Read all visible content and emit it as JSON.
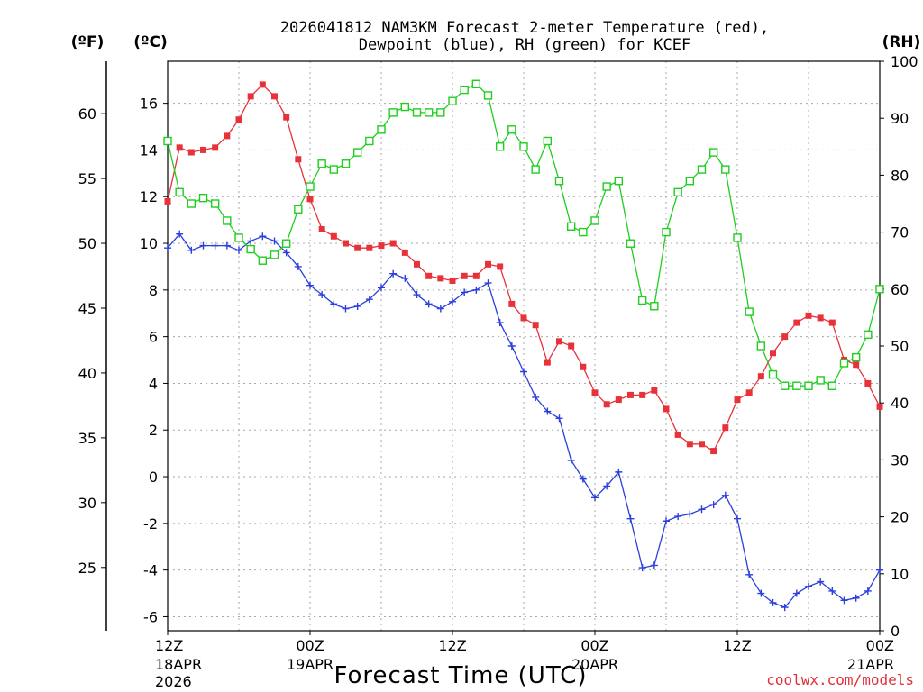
{
  "chart_data": {
    "type": "line",
    "title_line1": "2026041812 NAM3KM Forecast 2-meter Temperature (red),",
    "title_line2": "Dewpoint (blue), RH (green) for KCEF",
    "unit_left_f": "(ºF)",
    "unit_left_c": "(ºC)",
    "unit_right": "(RH)",
    "xlabel": "Forecast Time (UTC)",
    "credit": "coolwx.com/models",
    "x_range_hours": [
      0,
      60
    ],
    "celsius_range": [
      -6.6,
      17.8
    ],
    "rh_range": [
      0,
      100
    ],
    "fahrenheit_ticks": [
      "25",
      "30",
      "35",
      "40",
      "45",
      "50",
      "55",
      "60"
    ],
    "celsius_ticks": [
      "-6",
      "-4",
      "-2",
      "0",
      "2",
      "4",
      "6",
      "8",
      "10",
      "12",
      "14",
      "16"
    ],
    "rh_ticks": [
      "0",
      "10",
      "20",
      "30",
      "40",
      "50",
      "60",
      "70",
      "80",
      "90",
      "100"
    ],
    "x_ticks": [
      {
        "hour": 0,
        "line1": "12Z",
        "line2": "18APR",
        "line3": "2026"
      },
      {
        "hour": 12,
        "line1": "00Z",
        "line2": "19APR",
        "line3": ""
      },
      {
        "hour": 24,
        "line1": "12Z",
        "line2": "",
        "line3": ""
      },
      {
        "hour": 36,
        "line1": "00Z",
        "line2": "20APR",
        "line3": ""
      },
      {
        "hour": 48,
        "line1": "12Z",
        "line2": "",
        "line3": ""
      },
      {
        "hour": 60,
        "line1": "00Z",
        "line2": "21APR",
        "line3": ""
      }
    ],
    "series": [
      {
        "name": "Temperature",
        "unit": "C",
        "color": "#e8323a",
        "marker": "filled-square",
        "values": [
          11.8,
          14.1,
          13.9,
          14.0,
          14.1,
          14.6,
          15.3,
          16.3,
          16.8,
          16.3,
          15.4,
          13.6,
          11.9,
          10.6,
          10.3,
          10.0,
          9.8,
          9.8,
          9.9,
          10.0,
          9.6,
          9.1,
          8.6,
          8.5,
          8.4,
          8.6,
          8.6,
          9.1,
          9.0,
          7.4,
          6.8,
          6.5,
          4.9,
          5.8,
          5.6,
          4.7,
          3.6,
          3.1,
          3.3,
          3.5,
          3.5,
          3.7,
          2.9,
          1.8,
          1.4,
          1.4,
          1.1,
          2.1,
          3.3,
          3.6,
          4.3,
          5.3,
          6.0,
          6.6,
          6.9,
          6.8,
          6.6,
          5.0,
          4.8,
          4.0,
          3.0
        ]
      },
      {
        "name": "Dewpoint",
        "unit": "C",
        "color": "#2a3fdc",
        "marker": "plus",
        "values": [
          9.8,
          10.4,
          9.7,
          9.9,
          9.9,
          9.9,
          9.7,
          10.1,
          10.3,
          10.1,
          9.6,
          9.0,
          8.2,
          7.8,
          7.4,
          7.2,
          7.3,
          7.6,
          8.1,
          8.7,
          8.5,
          7.8,
          7.4,
          7.2,
          7.5,
          7.9,
          8.0,
          8.3,
          6.6,
          5.6,
          4.5,
          3.4,
          2.8,
          2.5,
          0.7,
          -0.1,
          -0.9,
          -0.4,
          0.2,
          -1.8,
          -3.9,
          -3.8,
          -1.9,
          -1.7,
          -1.6,
          -1.4,
          -1.2,
          -0.8,
          -1.8,
          -4.2,
          -5.0,
          -5.4,
          -5.6,
          -5.0,
          -4.7,
          -4.5,
          -4.9,
          -5.3,
          -5.2,
          -4.9,
          -4.0
        ]
      },
      {
        "name": "RH",
        "unit": "%",
        "color": "#1fce1f",
        "marker": "open-square",
        "values": [
          86,
          77,
          75,
          76,
          75,
          72,
          69,
          67,
          65,
          66,
          68,
          74,
          78,
          82,
          81,
          82,
          84,
          86,
          88,
          91,
          92,
          91,
          91,
          91,
          93,
          95,
          96,
          94,
          85,
          88,
          85,
          81,
          86,
          79,
          71,
          70,
          72,
          78,
          79,
          68,
          58,
          57,
          70,
          77,
          79,
          81,
          84,
          81,
          69,
          56,
          50,
          45,
          43,
          43,
          43,
          44,
          43,
          47,
          48,
          52,
          60
        ]
      }
    ]
  }
}
